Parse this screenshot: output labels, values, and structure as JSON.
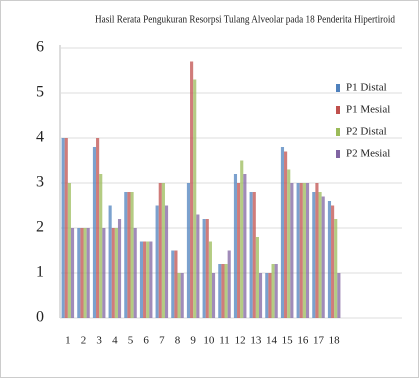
{
  "chart_data": {
    "type": "bar",
    "title": "Hasil Rerata Pengukuran Resorpsi Tulang Alveolar pada 18 Penderita Hipertiroid",
    "categories": [
      "1",
      "2",
      "3",
      "4",
      "5",
      "6",
      "7",
      "8",
      "9",
      "10",
      "11",
      "12",
      "13",
      "14",
      "15",
      "16",
      "17",
      "18"
    ],
    "series": [
      {
        "name": "P1 Distal",
        "color": "#4f81bd",
        "values": [
          4,
          2,
          3.8,
          2.5,
          2.8,
          1.7,
          2.5,
          1.5,
          3,
          2.2,
          1.2,
          3.2,
          2.8,
          1,
          3.8,
          3,
          2.8,
          2.6
        ]
      },
      {
        "name": "P1 Mesial",
        "color": "#c0504d",
        "values": [
          4,
          2,
          4,
          2,
          2.8,
          1.7,
          3,
          1.5,
          5.7,
          2.2,
          1.2,
          3,
          2.8,
          1,
          3.7,
          3,
          3,
          2.5
        ]
      },
      {
        "name": "P2 Distal",
        "color": "#9bbb59",
        "values": [
          3,
          2,
          3.2,
          2,
          2.8,
          1.7,
          3,
          1,
          5.3,
          1.7,
          1.2,
          3.5,
          1.8,
          1.2,
          3.3,
          3,
          2.8,
          2.2
        ]
      },
      {
        "name": "P2 Mesial",
        "color": "#8064a2",
        "values": [
          2,
          2,
          2,
          2.2,
          2,
          1.7,
          2.5,
          1,
          2.3,
          1,
          1.5,
          3.2,
          1,
          1.2,
          3,
          3,
          2.7,
          1
        ]
      }
    ],
    "ylim": [
      0,
      6
    ],
    "yticks": [
      0,
      1,
      2,
      3,
      4,
      5,
      6
    ],
    "grid": true
  }
}
